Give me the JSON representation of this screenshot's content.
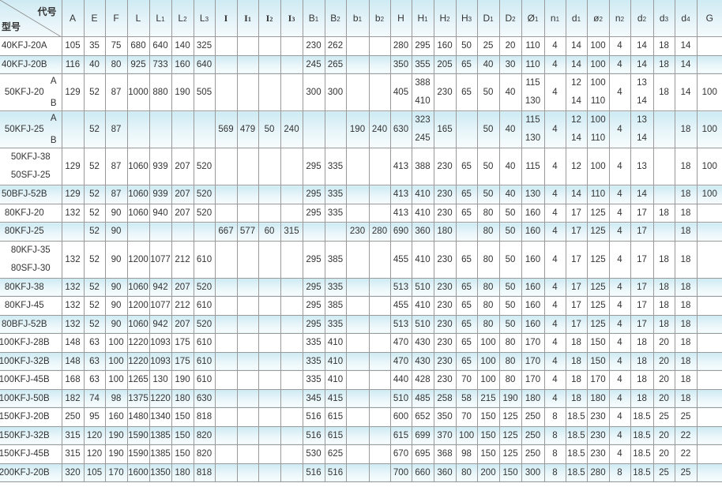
{
  "table": {
    "corner": {
      "top_label": "代号",
      "bottom_label": "型号"
    },
    "columns": [
      {
        "base": "A",
        "sub": ""
      },
      {
        "base": "E",
        "sub": ""
      },
      {
        "base": "F",
        "sub": ""
      },
      {
        "base": "L",
        "sub": ""
      },
      {
        "base": "L",
        "sub": "1"
      },
      {
        "base": "L",
        "sub": "2"
      },
      {
        "base": "L",
        "sub": "3"
      },
      {
        "base": "I",
        "sub": ""
      },
      {
        "base": "I",
        "sub": "1"
      },
      {
        "base": "I",
        "sub": "2"
      },
      {
        "base": "I",
        "sub": "3"
      },
      {
        "base": "B",
        "sub": "1"
      },
      {
        "base": "B",
        "sub": "2"
      },
      {
        "base": "b",
        "sub": "1"
      },
      {
        "base": "b",
        "sub": "2"
      },
      {
        "base": "H",
        "sub": ""
      },
      {
        "base": "H",
        "sub": "1"
      },
      {
        "base": "H",
        "sub": "2"
      },
      {
        "base": "H",
        "sub": "3"
      },
      {
        "base": "D",
        "sub": "1"
      },
      {
        "base": "D",
        "sub": "2"
      },
      {
        "base": "Ø",
        "sub": "1"
      },
      {
        "base": "n",
        "sub": "1"
      },
      {
        "base": "d",
        "sub": "1"
      },
      {
        "base": "ø",
        "sub": "2"
      },
      {
        "base": "n",
        "sub": "2"
      },
      {
        "base": "d",
        "sub": "2"
      },
      {
        "base": "d",
        "sub": "3"
      },
      {
        "base": "d",
        "sub": "4"
      },
      {
        "base": "G",
        "sub": ""
      }
    ],
    "rows": [
      {
        "model": [
          "40KFJ-20A"
        ],
        "shaded": false,
        "cells": [
          "105",
          "35",
          "75",
          "680",
          "640",
          "140",
          "325",
          "",
          "",
          "",
          "",
          "230",
          "262",
          "",
          "",
          "280",
          "295",
          "160",
          "50",
          "25",
          "20",
          "110",
          "4",
          "14",
          "100",
          "4",
          "14",
          "18",
          "14",
          ""
        ]
      },
      {
        "model": [
          "40KFJ-20B"
        ],
        "shaded": true,
        "cells": [
          "116",
          "40",
          "80",
          "925",
          "733",
          "160",
          "640",
          "",
          "",
          "",
          "",
          "245",
          "265",
          "",
          "",
          "350",
          "355",
          "205",
          "65",
          "40",
          "30",
          "110",
          "4",
          "14",
          "100",
          "4",
          "14",
          "18",
          "14",
          ""
        ]
      },
      {
        "model": [
          "50KFJ-20"
        ],
        "variants": [
          "A",
          "B"
        ],
        "shaded": false,
        "cells": [
          "129",
          "52",
          "87",
          "1000",
          "880",
          "190",
          "505",
          "",
          "",
          "",
          "",
          "300",
          "300",
          "",
          "",
          "405",
          [
            "388",
            "410"
          ],
          "230",
          "65",
          "50",
          "40",
          [
            "115",
            "130"
          ],
          "4",
          [
            "12",
            "14"
          ],
          [
            "100",
            "110"
          ],
          "4",
          [
            "13",
            "14"
          ],
          "18",
          "14",
          "100"
        ]
      },
      {
        "model": [
          "50KFJ-25"
        ],
        "variants": [
          "A",
          "B"
        ],
        "shaded": true,
        "cells": [
          "",
          "52",
          "87",
          "",
          "",
          "",
          "",
          "569",
          "479",
          "50",
          "240",
          "",
          "",
          "190",
          "240",
          "630",
          [
            "323",
            "245"
          ],
          "165",
          "",
          "50",
          "40",
          [
            "115",
            "130"
          ],
          "4",
          [
            "12",
            "14"
          ],
          [
            "100",
            "110"
          ],
          "4",
          [
            "13",
            "14"
          ],
          "",
          "18",
          "100"
        ]
      },
      {
        "model": [
          "50KFJ-38",
          "50SFJ-25"
        ],
        "shaded": false,
        "cells": [
          "129",
          "52",
          "87",
          "1060",
          "939",
          "207",
          "520",
          "",
          "",
          "",
          "",
          "295",
          "335",
          "",
          "",
          "413",
          "388",
          "230",
          "65",
          "50",
          "40",
          "115",
          "4",
          "12",
          "100",
          "4",
          "13",
          "",
          "18",
          "100"
        ]
      },
      {
        "model": [
          "50BFJ-52B"
        ],
        "shaded": true,
        "cells": [
          "129",
          "52",
          "87",
          "1060",
          "939",
          "207",
          "520",
          "",
          "",
          "",
          "",
          "295",
          "335",
          "",
          "",
          "413",
          "410",
          "230",
          "65",
          "50",
          "40",
          "130",
          "4",
          "14",
          "110",
          "4",
          "14",
          "",
          "18",
          "100"
        ]
      },
      {
        "model": [
          "80KFJ-20"
        ],
        "shaded": false,
        "cells": [
          "132",
          "52",
          "90",
          "1060",
          "940",
          "207",
          "520",
          "",
          "",
          "",
          "",
          "295",
          "335",
          "",
          "",
          "413",
          "410",
          "230",
          "65",
          "80",
          "50",
          "160",
          "4",
          "17",
          "125",
          "4",
          "17",
          "18",
          "18",
          ""
        ]
      },
      {
        "model": [
          "80KFJ-25"
        ],
        "shaded": true,
        "cells": [
          "",
          "52",
          "90",
          "",
          "",
          "",
          "",
          "667",
          "577",
          "60",
          "315",
          "",
          "",
          "230",
          "280",
          "690",
          "360",
          "180",
          "",
          "80",
          "50",
          "160",
          "4",
          "17",
          "125",
          "4",
          "17",
          "",
          "18",
          ""
        ]
      },
      {
        "model": [
          "80KFJ-35",
          "80SFJ-30"
        ],
        "shaded": false,
        "cells": [
          "132",
          "52",
          "90",
          "1200",
          "1077",
          "212",
          "610",
          "",
          "",
          "",
          "",
          "295",
          "385",
          "",
          "",
          "455",
          "410",
          "230",
          "65",
          "80",
          "50",
          "160",
          "4",
          "17",
          "125",
          "4",
          "17",
          "18",
          "18",
          ""
        ]
      },
      {
        "model": [
          "80KFJ-38"
        ],
        "shaded": true,
        "cells": [
          "132",
          "52",
          "90",
          "1060",
          "942",
          "207",
          "520",
          "",
          "",
          "",
          "",
          "295",
          "335",
          "",
          "",
          "513",
          "510",
          "230",
          "65",
          "80",
          "50",
          "160",
          "4",
          "17",
          "125",
          "4",
          "17",
          "18",
          "18",
          ""
        ]
      },
      {
        "model": [
          "80KFJ-45"
        ],
        "shaded": false,
        "cells": [
          "132",
          "52",
          "90",
          "1200",
          "1077",
          "212",
          "610",
          "",
          "",
          "",
          "",
          "295",
          "385",
          "",
          "",
          "455",
          "410",
          "230",
          "65",
          "80",
          "50",
          "160",
          "4",
          "17",
          "125",
          "4",
          "17",
          "18",
          "18",
          ""
        ]
      },
      {
        "model": [
          "80BFJ-52B"
        ],
        "shaded": true,
        "cells": [
          "132",
          "52",
          "90",
          "1060",
          "942",
          "207",
          "520",
          "",
          "",
          "",
          "",
          "295",
          "335",
          "",
          "",
          "513",
          "510",
          "230",
          "65",
          "80",
          "50",
          "160",
          "4",
          "17",
          "125",
          "4",
          "17",
          "18",
          "18",
          ""
        ]
      },
      {
        "model": [
          "100KFJ-28B"
        ],
        "shaded": false,
        "cells": [
          "148",
          "63",
          "100",
          "1220",
          "1093",
          "175",
          "610",
          "",
          "",
          "",
          "",
          "335",
          "410",
          "",
          "",
          "470",
          "430",
          "230",
          "65",
          "100",
          "80",
          "170",
          "4",
          "18",
          "150",
          "4",
          "18",
          "20",
          "18",
          ""
        ]
      },
      {
        "model": [
          "100KFJ-32B"
        ],
        "shaded": true,
        "cells": [
          "148",
          "63",
          "100",
          "1220",
          "1093",
          "175",
          "610",
          "",
          "",
          "",
          "",
          "335",
          "410",
          "",
          "",
          "470",
          "430",
          "230",
          "65",
          "100",
          "80",
          "170",
          "4",
          "18",
          "150",
          "4",
          "18",
          "20",
          "18",
          ""
        ]
      },
      {
        "model": [
          "100KFJ-45B"
        ],
        "shaded": false,
        "cells": [
          "168",
          "63",
          "100",
          "1265",
          "130",
          "190",
          "610",
          "",
          "",
          "",
          "",
          "335",
          "410",
          "",
          "",
          "440",
          "428",
          "230",
          "70",
          "100",
          "80",
          "170",
          "4",
          "18",
          "170",
          "4",
          "18",
          "20",
          "18",
          ""
        ]
      },
      {
        "model": [
          "100KFJ-50B"
        ],
        "shaded": true,
        "cells": [
          "182",
          "74",
          "98",
          "1375",
          "1220",
          "180",
          "630",
          "",
          "",
          "",
          "",
          "345",
          "415",
          "",
          "",
          "510",
          "485",
          "258",
          "58",
          "215",
          "190",
          "180",
          "4",
          "18",
          "180",
          "4",
          "18",
          "20",
          "18",
          ""
        ]
      },
      {
        "model": [
          "150KFJ-20B"
        ],
        "shaded": false,
        "cells": [
          "250",
          "95",
          "160",
          "1480",
          "1340",
          "150",
          "818",
          "",
          "",
          "",
          "",
          "516",
          "615",
          "",
          "",
          "600",
          "652",
          "350",
          "70",
          "150",
          "125",
          "250",
          "8",
          "18.5",
          "230",
          "4",
          "18.5",
          "25",
          "25",
          ""
        ]
      },
      {
        "model": [
          "150KFJ-32B"
        ],
        "shaded": true,
        "cells": [
          "315",
          "120",
          "190",
          "1590",
          "1385",
          "150",
          "820",
          "",
          "",
          "",
          "",
          "516",
          "615",
          "",
          "",
          "615",
          "699",
          "370",
          "100",
          "150",
          "125",
          "250",
          "8",
          "18.5",
          "230",
          "4",
          "18.5",
          "20",
          "22",
          ""
        ]
      },
      {
        "model": [
          "150KFJ-45B"
        ],
        "shaded": false,
        "cells": [
          "315",
          "120",
          "190",
          "1590",
          "1385",
          "150",
          "820",
          "",
          "",
          "",
          "",
          "530",
          "625",
          "",
          "",
          "670",
          "695",
          "368",
          "98",
          "150",
          "125",
          "250",
          "8",
          "18.5",
          "230",
          "4",
          "18.5",
          "20",
          "22",
          ""
        ]
      },
      {
        "model": [
          "200KFJ-20B"
        ],
        "shaded": true,
        "cells": [
          "320",
          "105",
          "170",
          "1600",
          "1350",
          "180",
          "818",
          "",
          "",
          "",
          "",
          "516",
          "516",
          "",
          "",
          "700",
          "660",
          "360",
          "80",
          "200",
          "150",
          "300",
          "8",
          "18.5",
          "280",
          "8",
          "18.5",
          "25",
          "25",
          ""
        ]
      }
    ]
  }
}
